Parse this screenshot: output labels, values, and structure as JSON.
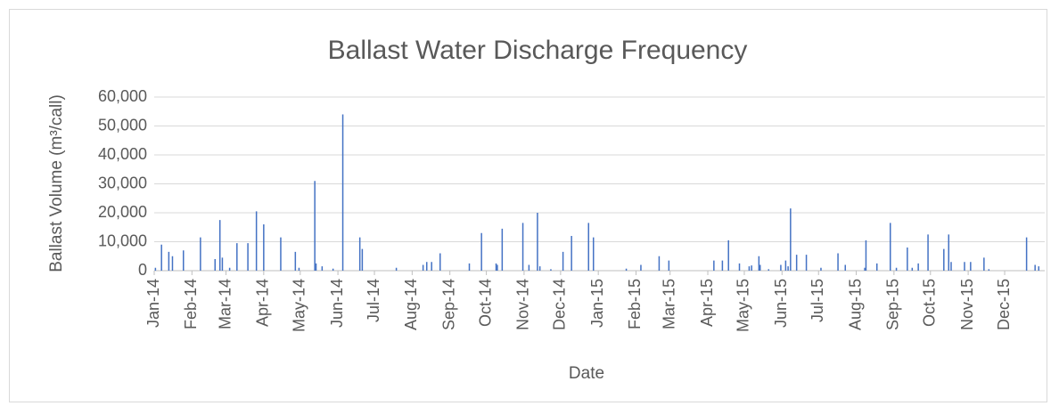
{
  "chart_data": {
    "type": "bar",
    "title": "Ballast Water Discharge Frequency",
    "x_label": "Date",
    "y_label": "Ballast Volume (m³/call)",
    "color": "#4472c4",
    "grid": true,
    "x": [
      41641,
      41646,
      41652,
      41655,
      41664,
      41678,
      41690,
      41694,
      41696,
      41702,
      41708,
      41717,
      41724,
      41730,
      41744,
      41756,
      41759,
      41772,
      41773,
      41778,
      41787,
      41795,
      41809,
      41811,
      41839,
      41861,
      41864,
      41868,
      41875,
      41899,
      41909,
      41921,
      41922,
      41926,
      41943,
      41948,
      41955,
      41957,
      41966,
      41976,
      41983,
      41997,
      42001,
      42028,
      42040,
      42055,
      42063,
      42100,
      42107,
      42112,
      42121,
      42129,
      42131,
      42137,
      42138,
      42145,
      42155,
      42159,
      42161,
      42163,
      42168,
      42176,
      42188,
      42202,
      42208,
      42224,
      42225,
      42234,
      42245,
      42250,
      42259,
      42263,
      42268,
      42276,
      42289,
      42293,
      42295,
      42306,
      42311,
      42322,
      42326,
      42357,
      42364,
      42367
    ],
    "values": [
      1000,
      9000,
      6500,
      5000,
      7000,
      11500,
      4000,
      17500,
      4500,
      1000,
      9500,
      9500,
      20500,
      16000,
      11500,
      6500,
      1000,
      31000,
      2500,
      1500,
      700,
      54000,
      11500,
      7500,
      1000,
      2000,
      3000,
      3000,
      6000,
      2500,
      13000,
      2500,
      2000,
      14500,
      16500,
      2000,
      20000,
      1500,
      500,
      6500,
      12000,
      16500,
      11500,
      700,
      2000,
      5000,
      3500,
      3500,
      3500,
      10500,
      2500,
      1500,
      1800,
      5000,
      2000,
      500,
      2000,
      3500,
      1500,
      21500,
      5500,
      5500,
      1000,
      6000,
      2000,
      1000,
      10500,
      2500,
      16500,
      1000,
      8000,
      1000,
      2500,
      12500,
      7500,
      12500,
      3000,
      3000,
      3000,
      4500,
      500,
      11500,
      2000,
      1500
    ],
    "xlim": [
      41640,
      42369
    ],
    "xticks": [
      {
        "value": 41640,
        "label": "Jan-14"
      },
      {
        "value": 41671,
        "label": "Feb-14"
      },
      {
        "value": 41699,
        "label": "Mar-14"
      },
      {
        "value": 41730,
        "label": "Apr-14"
      },
      {
        "value": 41760,
        "label": "May-14"
      },
      {
        "value": 41791,
        "label": "Jun-14"
      },
      {
        "value": 41821,
        "label": "Jul-14"
      },
      {
        "value": 41852,
        "label": "Aug-14"
      },
      {
        "value": 41883,
        "label": "Sep-14"
      },
      {
        "value": 41913,
        "label": "Oct-14"
      },
      {
        "value": 41944,
        "label": "Nov-14"
      },
      {
        "value": 41974,
        "label": "Dec-14"
      },
      {
        "value": 42005,
        "label": "Jan-15"
      },
      {
        "value": 42036,
        "label": "Feb-15"
      },
      {
        "value": 42064,
        "label": "Mar-15"
      },
      {
        "value": 42095,
        "label": "Apr-15"
      },
      {
        "value": 42125,
        "label": "May-15"
      },
      {
        "value": 42156,
        "label": "Jun-15"
      },
      {
        "value": 42186,
        "label": "Jul-15"
      },
      {
        "value": 42217,
        "label": "Aug-15"
      },
      {
        "value": 42248,
        "label": "Sep-15"
      },
      {
        "value": 42278,
        "label": "Oct-15"
      },
      {
        "value": 42309,
        "label": "Nov-15"
      },
      {
        "value": 42339,
        "label": "Dec-15"
      }
    ],
    "ylim": [
      0,
      60000
    ],
    "yticks": [
      0,
      {
        "value": 10000,
        "label": "10,000"
      },
      {
        "value": 20000,
        "label": "20,000"
      },
      {
        "value": 30000,
        "label": "30,000"
      },
      {
        "value": 40000,
        "label": "40,000"
      },
      {
        "value": 50000,
        "label": "50,000"
      },
      {
        "value": 60000,
        "label": "60,000"
      }
    ]
  }
}
